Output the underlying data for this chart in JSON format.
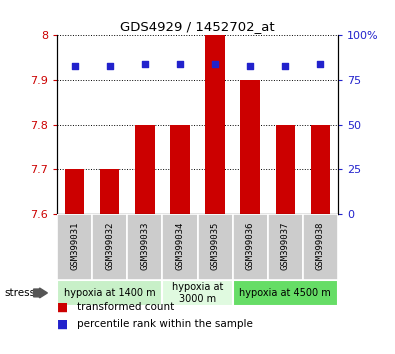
{
  "title": "GDS4929 / 1452702_at",
  "samples": [
    "GSM399031",
    "GSM399032",
    "GSM399033",
    "GSM399034",
    "GSM399035",
    "GSM399036",
    "GSM399037",
    "GSM399038"
  ],
  "bar_values": [
    7.7,
    7.7,
    7.8,
    7.8,
    8.0,
    7.9,
    7.8,
    7.8
  ],
  "percentile_values": [
    83,
    83,
    84,
    84,
    84,
    83,
    83,
    84
  ],
  "y_min": 7.6,
  "y_max": 8.0,
  "y_ticks": [
    7.6,
    7.7,
    7.8,
    7.9,
    8.0
  ],
  "y_tick_labels": [
    "7.6",
    "7.7",
    "7.8",
    "7.9",
    "8"
  ],
  "right_y_ticks": [
    0,
    25,
    50,
    75,
    100
  ],
  "right_y_tick_labels": [
    "0",
    "25",
    "50",
    "75",
    "100%"
  ],
  "groups": [
    {
      "label": "hypoxia at 1400 m",
      "start": 0,
      "end": 3,
      "color": "#c8f0c8"
    },
    {
      "label": "hypoxia at\n3000 m",
      "start": 3,
      "end": 5,
      "color": "#e0fae0"
    },
    {
      "label": "hypoxia at 4500 m",
      "start": 5,
      "end": 8,
      "color": "#66dd66"
    }
  ],
  "bar_color": "#cc0000",
  "dot_color": "#2222cc",
  "bar_bottom": 7.6,
  "bar_width": 0.55,
  "legend_items": [
    {
      "color": "#cc0000",
      "marker": "s",
      "label": "transformed count"
    },
    {
      "color": "#2222cc",
      "marker": "s",
      "label": "percentile rank within the sample"
    }
  ],
  "stress_label": "stress",
  "tick_label_color": "#cc0000",
  "right_tick_color": "#2222cc",
  "sample_box_color": "#cccccc",
  "background_color": "#ffffff"
}
